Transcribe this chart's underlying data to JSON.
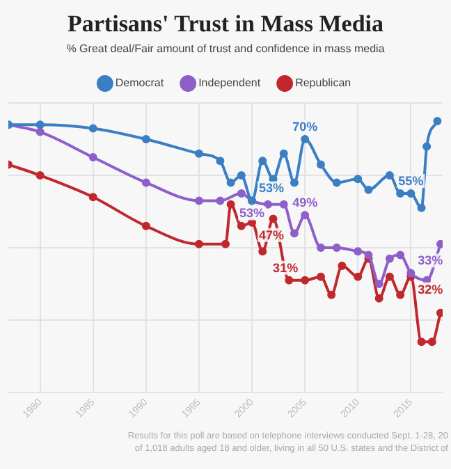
{
  "chart_data": {
    "type": "line",
    "title": "Partisans' Trust in Mass Media",
    "subtitle": "% Great deal/Fair amount of trust and confidence in mass media",
    "xlim": [
      1977,
      2018
    ],
    "xticks": [
      1980,
      1985,
      1990,
      1995,
      2000,
      2005,
      2010,
      2015
    ],
    "ylim": [
      0,
      80
    ],
    "yticks": [
      {
        "value": 0,
        "label": null
      },
      {
        "value": 20,
        "label": null
      },
      {
        "value": 40,
        "label": null
      },
      {
        "value": 60,
        "label": null
      },
      {
        "value": 80,
        "label": null
      }
    ],
    "tick_labels": "x",
    "grid": true,
    "legend": "top",
    "marker": "circle",
    "line_style": "solid",
    "series": [
      {
        "name": "Democrat",
        "color": "#3a7fc4",
        "x": [
          1977,
          1980,
          1985,
          1990,
          1995,
          1997,
          1998,
          1999,
          2000,
          2001,
          2002,
          2003,
          2004,
          2005,
          2006.5,
          2008,
          2010,
          2011,
          2013,
          2014,
          2015,
          2016,
          2016.5,
          2017.5
        ],
        "values": [
          74,
          74,
          73,
          70,
          66,
          64,
          58,
          60,
          53,
          64,
          59,
          66,
          58,
          70,
          63,
          58,
          59,
          56,
          60,
          55,
          55,
          51,
          68,
          75
        ],
        "value_labels": [
          null,
          null,
          null,
          null,
          null,
          null,
          null,
          null,
          "53%",
          null,
          null,
          null,
          null,
          "70%",
          null,
          null,
          null,
          null,
          null,
          null,
          "55%",
          null,
          null,
          null
        ]
      },
      {
        "name": "Independent",
        "color": "#8e5fc9",
        "x": [
          1977,
          1980,
          1985,
          1990,
          1995,
          1997,
          1999,
          2000,
          2001.5,
          2003,
          2004,
          2005,
          2006.5,
          2008,
          2010,
          2011,
          2012,
          2013,
          2014,
          2015,
          2016.5,
          2017.8
        ],
        "values": [
          74,
          72,
          65,
          58,
          53,
          53,
          55,
          53,
          52,
          52,
          44,
          49,
          40,
          40,
          39,
          38,
          30,
          37,
          38,
          33,
          31,
          41
        ],
        "value_labels": [
          null,
          null,
          null,
          null,
          null,
          null,
          null,
          "53%",
          null,
          null,
          null,
          "49%",
          null,
          null,
          null,
          null,
          null,
          null,
          null,
          "33%",
          null,
          null
        ]
      },
      {
        "name": "Republican",
        "color": "#c0282d",
        "x": [
          1977,
          1980,
          1985,
          1990,
          1995,
          1997.5,
          1998,
          1999,
          2000,
          2001,
          2002,
          2003.5,
          2005,
          2006.5,
          2007.5,
          2008.5,
          2010,
          2011,
          2012,
          2013,
          2014,
          2015,
          2016,
          2017,
          2017.8
        ],
        "values": [
          63,
          60,
          54,
          46,
          41,
          41,
          52,
          46,
          47,
          39,
          48,
          31,
          31,
          32,
          27,
          35,
          32,
          37,
          26,
          32,
          27,
          32,
          14,
          14,
          22
        ],
        "value_labels": [
          null,
          null,
          null,
          null,
          null,
          null,
          null,
          null,
          "47%",
          null,
          null,
          null,
          "31%",
          null,
          null,
          null,
          null,
          null,
          null,
          null,
          null,
          "32%",
          null,
          null,
          null
        ]
      }
    ],
    "annotations": [
      "Results for this poll are based on telephone interviews conducted Sept. 1-28, 20",
      "of 1,018 adults aged 18 and older, living in all 50 U.S. states and the District of"
    ]
  }
}
